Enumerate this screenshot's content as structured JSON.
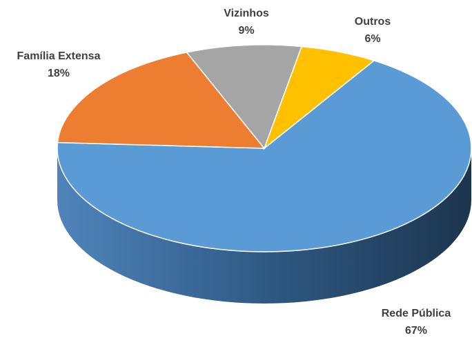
{
  "chart_data": {
    "type": "pie",
    "categories": [
      "Rede Pública",
      "Família Extensa",
      "Vizinhos",
      "Outros"
    ],
    "values": [
      67,
      18,
      9,
      6
    ],
    "value_labels": [
      "67%",
      "18%",
      "9%",
      "6%"
    ],
    "colors": [
      "#5b9bd5",
      "#ed7d31",
      "#a5a5a5",
      "#ffc000"
    ]
  }
}
